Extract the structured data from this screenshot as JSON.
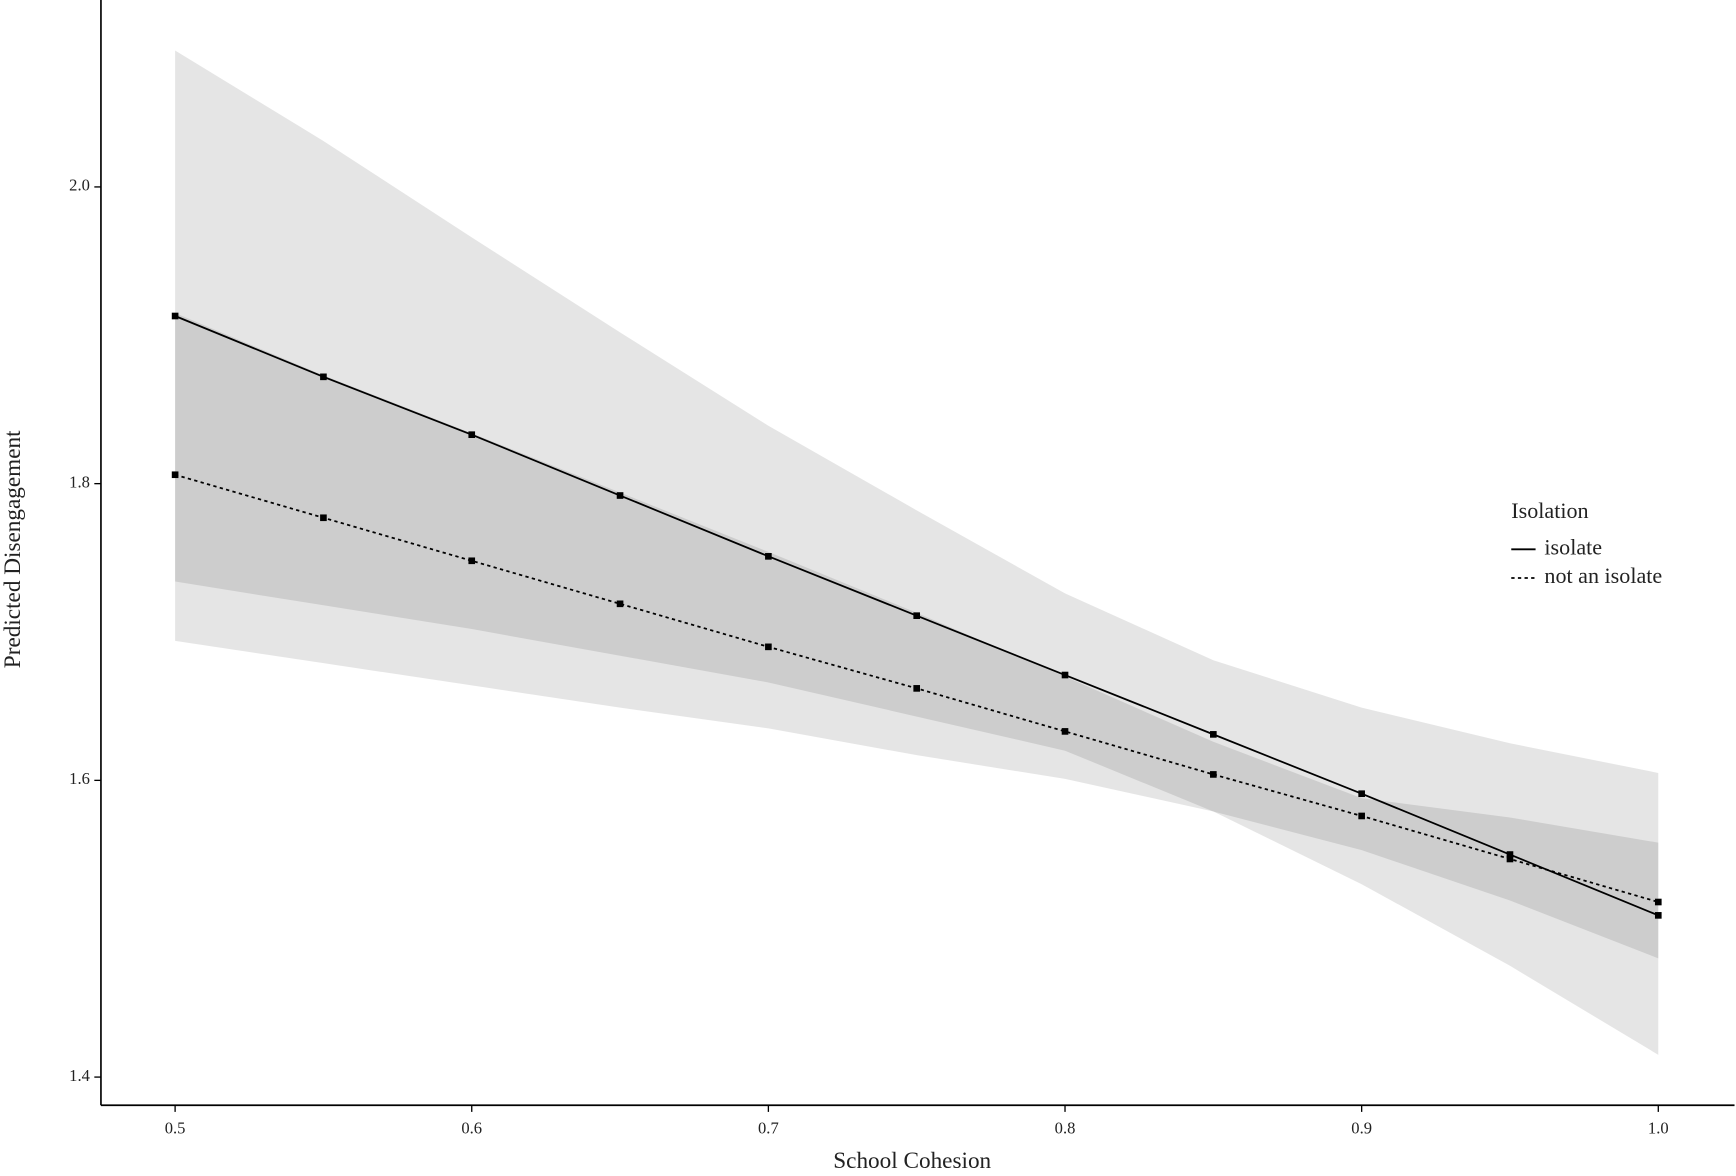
{
  "chart_data": {
    "type": "line",
    "x_label": "School Cohesion",
    "y_label": "Predicted Disengagement",
    "legend_title": "Isolation",
    "legend_position": "right",
    "x": [
      0.5,
      0.55,
      0.6,
      0.65,
      0.7,
      0.75,
      0.8,
      0.85,
      0.9,
      0.95,
      1.0
    ],
    "series": [
      {
        "name": "isolate",
        "color": "#000000",
        "linestyle": "solid",
        "values": [
          1.913,
          1.872,
          1.833,
          1.792,
          1.751,
          1.711,
          1.671,
          1.631,
          1.591,
          1.55,
          1.509
        ],
        "lower": [
          1.694,
          1.679,
          1.664,
          1.649,
          1.635,
          1.617,
          1.601,
          1.579,
          1.53,
          1.475,
          1.415
        ],
        "upper": [
          2.092,
          2.031,
          1.966,
          1.902,
          1.839,
          1.782,
          1.726,
          1.681,
          1.649,
          1.625,
          1.605
        ]
      },
      {
        "name": "not an isolate",
        "color": "#000000",
        "linestyle": "dotted",
        "values": [
          1.806,
          1.777,
          1.748,
          1.719,
          1.69,
          1.662,
          1.633,
          1.604,
          1.576,
          1.547,
          1.518
        ],
        "lower": [
          1.734,
          1.718,
          1.702,
          1.684,
          1.666,
          1.643,
          1.62,
          1.579,
          1.553,
          1.519,
          1.48
        ],
        "upper": [
          1.915,
          1.873,
          1.834,
          1.794,
          1.754,
          1.713,
          1.67,
          1.626,
          1.588,
          1.575,
          1.558
        ]
      }
    ],
    "band_color": "#000000",
    "xlim": [
      0.475,
      1.0257
    ],
    "ylim": [
      1.381,
      2.126
    ],
    "xticks": [
      0.5,
      0.6,
      0.7,
      0.8,
      0.9,
      {
        "value": 1,
        "label": "1.0"
      }
    ],
    "yticks": [
      1.4,
      1.6,
      1.8,
      {
        "value": 2,
        "label": "2.0"
      }
    ],
    "grid": false
  }
}
